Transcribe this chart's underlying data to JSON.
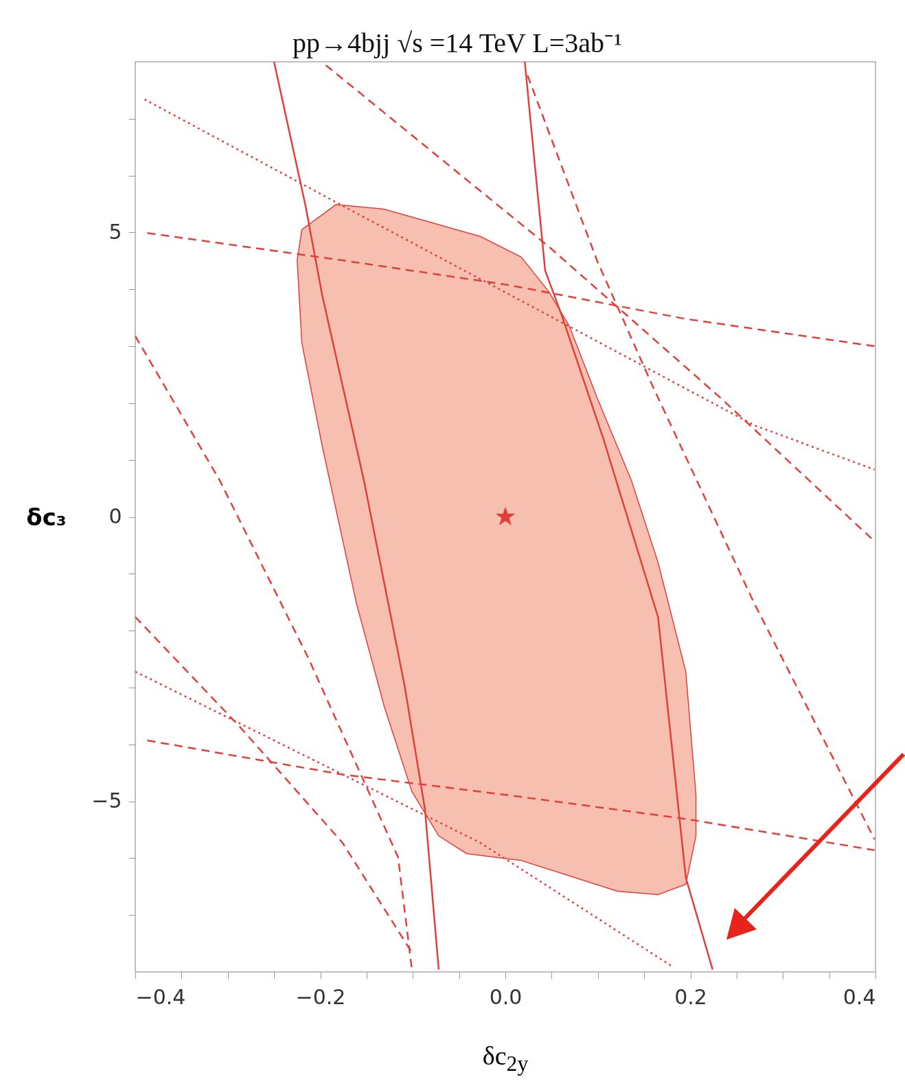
{
  "chart_data": {
    "type": "line",
    "title": "pp→4bjj     √s =14 TeV  L=3ab⁻¹",
    "xlabel": "δc$_{2y}$",
    "ylabel": "δc₃",
    "xlim": [
      -0.4,
      0.4
    ],
    "ylim": [
      -8,
      8
    ],
    "xticks": [
      {
        "value": -0.4,
        "label": "−0.4"
      },
      {
        "value": -0.35,
        "label": null
      },
      {
        "value": -0.3,
        "label": null
      },
      {
        "value": -0.25,
        "label": null
      },
      {
        "value": -0.2,
        "label": "−0.2"
      },
      {
        "value": -0.15,
        "label": null
      },
      {
        "value": -0.1,
        "label": null
      },
      {
        "value": -0.05,
        "label": null
      },
      {
        "value": 0,
        "label": "0.0"
      },
      {
        "value": 0.05,
        "label": null
      },
      {
        "value": 0.1,
        "label": null
      },
      {
        "value": 0.15,
        "label": null
      },
      {
        "value": 0.2,
        "label": "0.2"
      },
      {
        "value": 0.25,
        "label": null
      },
      {
        "value": 0.3,
        "label": null
      },
      {
        "value": 0.35,
        "label": null
      },
      {
        "value": 0.4,
        "label": "0.4"
      }
    ],
    "yticks": [
      {
        "value": -7,
        "label": null
      },
      {
        "value": -6,
        "label": null
      },
      {
        "value": -5,
        "label": "−5"
      },
      {
        "value": -4,
        "label": null
      },
      {
        "value": -3,
        "label": null
      },
      {
        "value": -2,
        "label": null
      },
      {
        "value": -1,
        "label": null
      },
      0,
      {
        "value": 1,
        "label": null
      },
      {
        "value": 2,
        "label": null
      },
      {
        "value": 3,
        "label": null
      },
      {
        "value": 4,
        "label": null
      },
      5,
      {
        "value": 6,
        "label": null
      },
      {
        "value": 7,
        "label": null
      }
    ],
    "grid": false,
    "series": [
      {
        "type": "area",
        "color": "#f4b4a2",
        "x": [
          -0.22,
          -0.183,
          -0.131,
          -0.027,
          0.017,
          0.047,
          0.069,
          0.099,
          0.136,
          0.165,
          0.195,
          0.206,
          0.206,
          0.195,
          0.165,
          0.121,
          0.017,
          -0.042,
          -0.072,
          -0.101,
          -0.131,
          -0.161,
          -0.198,
          -0.22,
          -0.225
        ],
        "values": [
          5.05,
          5.49,
          5.41,
          4.93,
          4.57,
          3.96,
          3.36,
          2.1,
          0.65,
          -0.8,
          -2.72,
          -4.89,
          -5.61,
          -6.46,
          -6.64,
          -6.58,
          -6.04,
          -5.92,
          -5.61,
          -4.83,
          -3.33,
          -1.52,
          1.25,
          3.06,
          4.51
        ]
      },
      {
        "color": "#e0403c",
        "line_style": "solid",
        "x": [
          -0.25,
          -0.216,
          -0.198,
          -0.153,
          -0.109,
          -0.087,
          -0.072
        ],
        "values": [
          8,
          5.47,
          3.9,
          0.65,
          -2.96,
          -5.13,
          -7.96
        ]
      },
      {
        "color": "#e0403c",
        "line_style": "solid",
        "x": [
          0.021,
          0.043,
          0.061,
          0.106,
          0.165,
          0.195,
          0.224
        ],
        "values": [
          8,
          4.33,
          3.54,
          1.37,
          -1.76,
          -6.34,
          -7.96
        ]
      },
      {
        "color": "#e0403c",
        "line_style": "dashed",
        "x": [
          -0.387,
          -0.176,
          0.002,
          0.195,
          0.399
        ],
        "values": [
          4.99,
          4.51,
          4.08,
          3.48,
          3.0
        ]
      },
      {
        "color": "#e0403c",
        "line_style": "dashed",
        "x": [
          -0.387,
          -0.176,
          0.002,
          0.195,
          0.399
        ],
        "values": [
          -3.93,
          -4.53,
          -4.89,
          -5.31,
          -5.86
        ]
      },
      {
        "color": "#e0403c",
        "line_style": "dashed",
        "x": [
          0.024,
          0.099,
          0.158,
          0.269,
          0.399
        ],
        "values": [
          7.76,
          4.51,
          2.34,
          -1.52,
          -5.67
        ]
      },
      {
        "color": "#e0403c",
        "line_style": "dashed",
        "x": [
          -0.194,
          0.047,
          0.232,
          0.399
        ],
        "values": [
          7.94,
          4.75,
          2.1,
          -0.43
        ]
      },
      {
        "color": "#e0403c",
        "line_style": "dotted",
        "x": [
          -0.39,
          -0.176,
          0.047,
          0.269,
          0.399
        ],
        "values": [
          7.34,
          5.47,
          3.54,
          1.61,
          0.83
        ]
      },
      {
        "color": "#e0403c",
        "line_style": "dashed",
        "x": [
          -0.4,
          -0.309,
          -0.213,
          -0.116,
          -0.101
        ],
        "values": [
          3.18,
          0.65,
          -2.48,
          -5.98,
          -7.96
        ]
      },
      {
        "color": "#e0403c",
        "line_style": "dashed",
        "x": [
          -0.4,
          -0.287,
          -0.176,
          -0.101
        ],
        "values": [
          -1.76,
          -3.69,
          -5.73,
          -7.66
        ]
      },
      {
        "color": "#e0403c",
        "line_style": "dotted",
        "x": [
          -0.4,
          -0.25,
          -0.027,
          0.18
        ],
        "values": [
          -2.72,
          -3.93,
          -5.73,
          -7.9
        ]
      },
      {
        "type": "scatter",
        "marker": "star",
        "color": "#e0403c",
        "x": [
          0
        ],
        "values": [
          0
        ]
      }
    ]
  }
}
